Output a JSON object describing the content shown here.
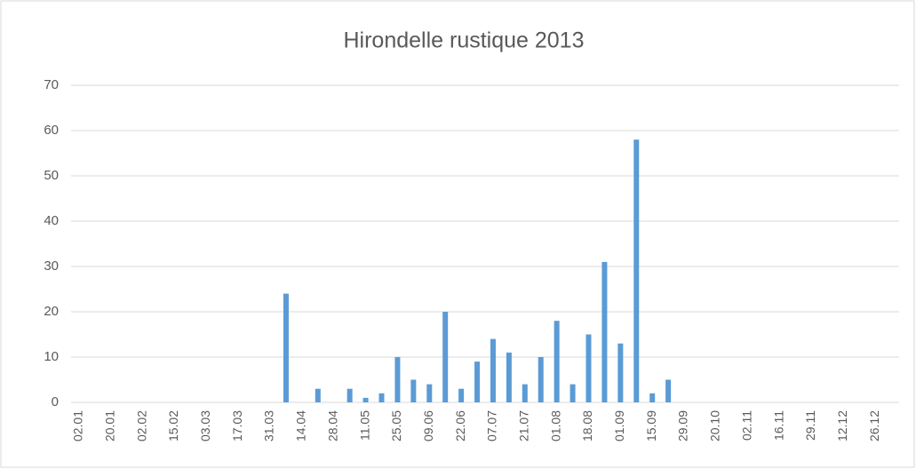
{
  "chart_data": {
    "type": "bar",
    "title": "Hirondelle rustique 2013",
    "categories": [
      "02.01",
      null,
      "20.01",
      null,
      "02.02",
      null,
      "15.02",
      null,
      "03.03",
      null,
      "17.03",
      null,
      "31.03",
      null,
      "14.04",
      null,
      "28.04",
      null,
      "11.05",
      null,
      "25.05",
      null,
      "09.06",
      null,
      "22.06",
      null,
      "07.07",
      null,
      "21.07",
      null,
      "01.08",
      null,
      "18.08",
      null,
      "01.09",
      null,
      "15.09",
      null,
      "29.09",
      null,
      "20.10",
      null,
      "02.11",
      null,
      "16.11",
      null,
      "29.11",
      null,
      "12.12",
      null,
      "26.12",
      null
    ],
    "values": [
      null,
      null,
      null,
      null,
      null,
      null,
      null,
      null,
      null,
      null,
      null,
      null,
      null,
      24,
      null,
      3,
      null,
      3,
      1,
      2,
      10,
      5,
      4,
      20,
      3,
      9,
      14,
      11,
      4,
      10,
      18,
      4,
      15,
      31,
      13,
      58,
      2,
      5,
      null,
      null,
      null,
      null,
      null,
      null,
      null,
      null,
      null,
      null,
      null,
      null,
      null,
      null
    ],
    "color": "#5b9bd5",
    "ylim": [
      0,
      70
    ],
    "yticks": [
      0,
      10,
      20,
      30,
      40,
      50,
      60,
      70
    ],
    "grid": true
  }
}
